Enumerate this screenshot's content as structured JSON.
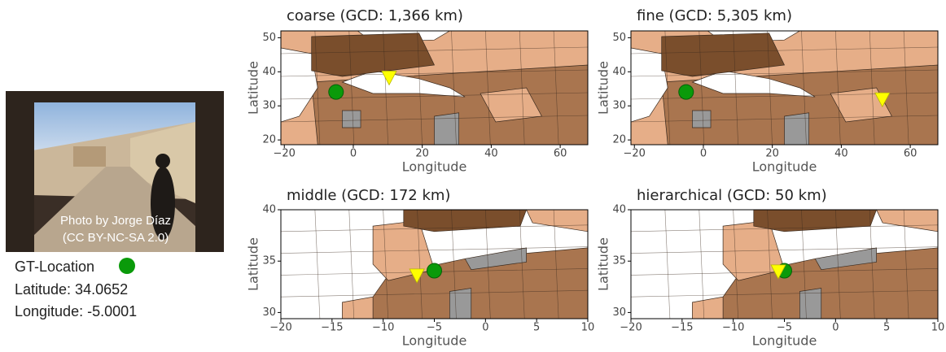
{
  "photo_credit": [
    "Photo by Jorge Díaz",
    "(CC BY-NC-SA 2.0)"
  ],
  "gt_location": {
    "label": "GT-Location",
    "latitude": "Latitude: 34.0652",
    "longitude": "Longitude: -5.0001"
  },
  "chart_data": [
    {
      "type": "scatter",
      "title": "coarse (GCD: 1,366 km)",
      "xlabel": "Longitude",
      "ylabel": "Latitude",
      "xlim": [
        -21,
        68
      ],
      "ylim": [
        18.6,
        52
      ],
      "xticks": [
        {
          "value": -20,
          "label": "−20"
        },
        0,
        20,
        40,
        60
      ],
      "yticks": [
        20,
        30,
        40,
        50
      ],
      "series": [
        {
          "color": "#0a9a0a",
          "marker": "circle",
          "x": [
            -5.0001
          ],
          "values": [
            34.0652
          ]
        },
        {
          "color": "#ffff00",
          "marker": "triangle",
          "x": [
            10.4
          ],
          "values": [
            38.3
          ]
        }
      ]
    },
    {
      "type": "scatter",
      "title": "fine (GCD: 5,305 km)",
      "xlabel": "Longitude",
      "ylabel": "Latitude",
      "xlim": [
        -21,
        68
      ],
      "ylim": [
        18.6,
        52
      ],
      "xticks": [
        {
          "value": -20,
          "label": "−20"
        },
        0,
        20,
        40,
        60
      ],
      "yticks": [
        20,
        30,
        40,
        50
      ],
      "series": [
        {
          "color": "#0a9a0a",
          "marker": "circle",
          "x": [
            -5.0001
          ],
          "values": [
            34.0652
          ]
        },
        {
          "color": "#ffff00",
          "marker": "triangle",
          "x": [
            51.9
          ],
          "values": [
            31.9
          ]
        }
      ]
    },
    {
      "type": "scatter",
      "title": "middle (GCD: 172 km)",
      "xlabel": "Longitude",
      "ylabel": "Latitude",
      "xlim": [
        -20,
        10
      ],
      "ylim": [
        29.4,
        40
      ],
      "xticks": [
        {
          "value": -20,
          "label": "−20"
        },
        {
          "value": -15,
          "label": "−15"
        },
        {
          "value": -10,
          "label": "−10"
        },
        {
          "value": -5,
          "label": "−5"
        },
        0,
        5,
        10
      ],
      "yticks": [
        30,
        35,
        40
      ],
      "series": [
        {
          "color": "#0a9a0a",
          "marker": "circle",
          "x": [
            -5.0001
          ],
          "values": [
            34.0652
          ]
        },
        {
          "color": "#ffff00",
          "marker": "triangle",
          "x": [
            -6.7
          ],
          "values": [
            33.6
          ]
        }
      ]
    },
    {
      "type": "scatter",
      "title": "hierarchical (GCD: 50 km)",
      "xlabel": "Longitude",
      "ylabel": "Latitude",
      "xlim": [
        -20,
        10
      ],
      "ylim": [
        29.4,
        40
      ],
      "xticks": [
        {
          "value": -20,
          "label": "−20"
        },
        {
          "value": -15,
          "label": "−15"
        },
        {
          "value": -10,
          "label": "−10"
        },
        {
          "value": -5,
          "label": "−5"
        },
        0,
        5,
        10
      ],
      "yticks": [
        30,
        35,
        40
      ],
      "series": [
        {
          "color": "#0a9a0a",
          "marker": "circle",
          "x": [
            -5.0001
          ],
          "values": [
            34.0652
          ]
        },
        {
          "color": "#ffff00",
          "marker": "triangle",
          "x": [
            -5.6
          ],
          "values": [
            34.0
          ]
        }
      ]
    }
  ]
}
